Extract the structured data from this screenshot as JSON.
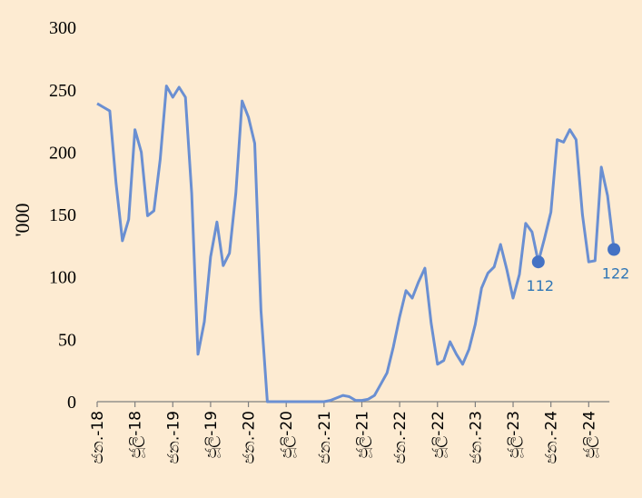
{
  "colors": {
    "background": "#fdebd2",
    "line": "#6a8fd2",
    "marker": "#4472c4",
    "data_label": "#2e75b6",
    "axis": "#7f7f7f"
  },
  "chart_data": {
    "type": "line",
    "ylabel": "'000",
    "ylim": [
      0,
      300
    ],
    "yticks": [
      0,
      50,
      100,
      150,
      200,
      250,
      300
    ],
    "xlim": [
      0,
      79
    ],
    "grid": false,
    "xticks": [
      {
        "x": 0,
        "label": "ජන.-18"
      },
      {
        "x": 6,
        "label": "ජූලි-18"
      },
      {
        "x": 12,
        "label": "ජන.-19"
      },
      {
        "x": 18,
        "label": "ජූලි-19"
      },
      {
        "x": 24,
        "label": "ජන.-20"
      },
      {
        "x": 30,
        "label": "ජූලි-20"
      },
      {
        "x": 36,
        "label": "ජන.-21"
      },
      {
        "x": 42,
        "label": "ජූලි-21"
      },
      {
        "x": 48,
        "label": "ජන.-22"
      },
      {
        "x": 54,
        "label": "ජූලි-22"
      },
      {
        "x": 60,
        "label": "ජන.-23"
      },
      {
        "x": 66,
        "label": "ජූලි-23"
      },
      {
        "x": 72,
        "label": "ජන.-24"
      },
      {
        "x": 78,
        "label": "ජූලි-24"
      }
    ],
    "series": [
      {
        "values": [
          239,
          236,
          233,
          175,
          129,
          146,
          218,
          200,
          149,
          153,
          194,
          253,
          244,
          252,
          244,
          167,
          38,
          64,
          116,
          144,
          109,
          119,
          167,
          241,
          228,
          207,
          73,
          0,
          0,
          0,
          0,
          0,
          0,
          0,
          0,
          0,
          0,
          1,
          3,
          5,
          4,
          1,
          1,
          2,
          5,
          14,
          23,
          44,
          68,
          89,
          83,
          96,
          107,
          63,
          30,
          33,
          48,
          38,
          30,
          42,
          62,
          91,
          103,
          108,
          126,
          106,
          83,
          102,
          143,
          136,
          112,
          131,
          152,
          210,
          208,
          218,
          210,
          150,
          112,
          113,
          188,
          165,
          122
        ]
      }
    ],
    "markers": [
      {
        "x": 70,
        "y": 112,
        "label": "112"
      },
      {
        "x": 82,
        "y": 122,
        "label": "122"
      }
    ]
  }
}
